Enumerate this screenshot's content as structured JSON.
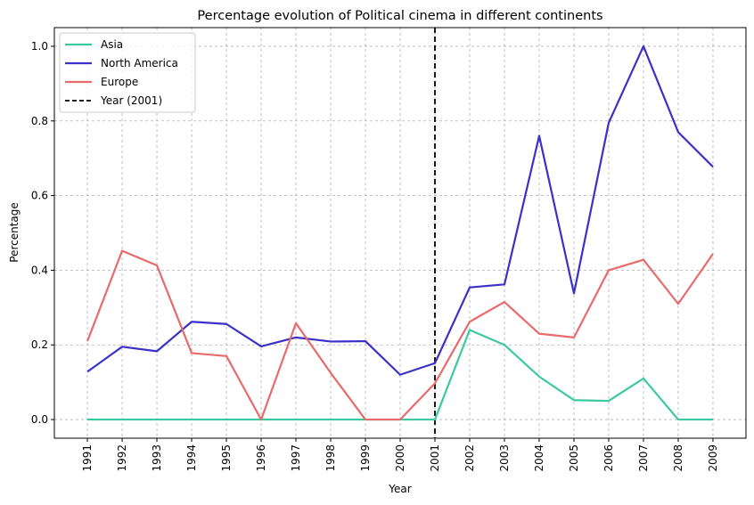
{
  "chart_data": {
    "type": "line",
    "title": "Percentage evolution of Political cinema in different continents",
    "xlabel": "Year",
    "ylabel": "Percentage",
    "x": [
      1991,
      1992,
      1993,
      1994,
      1995,
      1996,
      1997,
      1998,
      1999,
      2000,
      2001,
      2002,
      2003,
      2004,
      2005,
      2006,
      2007,
      2008,
      2009
    ],
    "x_tick_labels": [
      "1991",
      "1992",
      "1993",
      "1994",
      "1995",
      "1996",
      "1997",
      "1998",
      "1999",
      "2000",
      "2001",
      "2002",
      "2003",
      "2004",
      "2005",
      "2006",
      "2007",
      "2008",
      "2009"
    ],
    "y_ticks": [
      0.0,
      0.2,
      0.4,
      0.6,
      0.8,
      1.0
    ],
    "y_tick_labels": [
      "0.0",
      "0.2",
      "0.4",
      "0.6",
      "0.8",
      "1.0"
    ],
    "ylim": [
      -0.05,
      1.05
    ],
    "grid": true,
    "legend_position": "top-left",
    "series": [
      {
        "name": "Asia",
        "color": "#3cc9a0",
        "values": [
          0,
          0,
          0,
          0,
          0,
          0,
          0,
          0,
          0,
          0,
          0,
          0.24,
          0.2,
          0.115,
          0.052,
          0.05,
          0.11,
          0,
          0
        ]
      },
      {
        "name": "North America",
        "color": "#3b30c8",
        "values": [
          0.128,
          0.195,
          0.183,
          0.262,
          0.256,
          0.196,
          0.22,
          0.209,
          0.21,
          0.12,
          0.151,
          0.354,
          0.362,
          0.76,
          0.338,
          0.795,
          1.0,
          0.77,
          0.677
        ]
      },
      {
        "name": "Europe",
        "color": "#e86a6a",
        "values": [
          0.21,
          0.452,
          0.413,
          0.178,
          0.17,
          0,
          0.258,
          0.125,
          0,
          0,
          0.097,
          0.262,
          0.315,
          0.23,
          0.22,
          0.4,
          0.428,
          0.31,
          0.444
        ]
      }
    ],
    "reference_line": {
      "name": "Year (2001)",
      "x": 2001,
      "color": "#000000",
      "style": "dashed"
    }
  }
}
